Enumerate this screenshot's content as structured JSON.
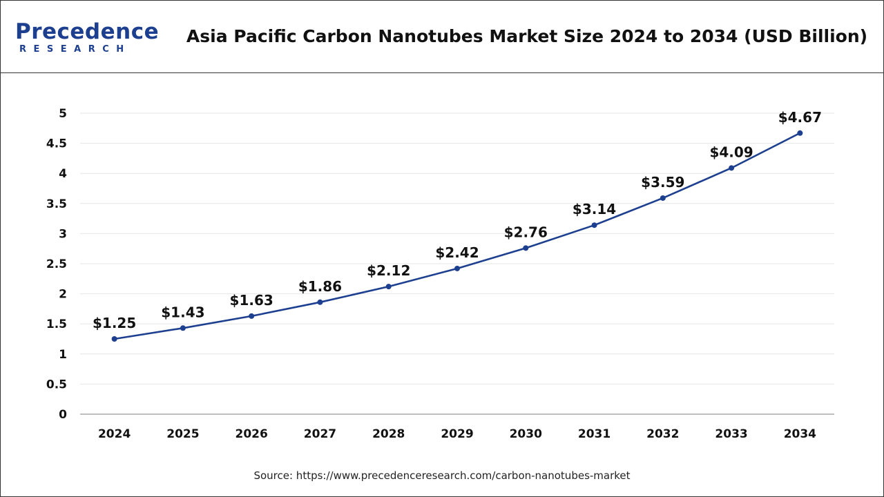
{
  "header": {
    "brand_name": "Precedence",
    "brand_sub": "RESEARCH",
    "title": "Asia Pacific Carbon Nanotubes Market Size 2024 to 2034 (USD Billion)"
  },
  "footer": {
    "source": "Source: https://www.precedenceresearch.com/carbon-nanotubes-market"
  },
  "colors": {
    "line": "#1d3f8f",
    "brand": "#1d3f8f",
    "grid": "#e6e6e6",
    "axis": "#999999"
  },
  "chart_data": {
    "type": "line",
    "title": "Asia Pacific Carbon Nanotubes Market Size 2024 to 2034 (USD Billion)",
    "xlabel": "",
    "ylabel": "",
    "categories": [
      "2024",
      "2025",
      "2026",
      "2027",
      "2028",
      "2029",
      "2030",
      "2031",
      "2032",
      "2033",
      "2034"
    ],
    "series": [
      {
        "values": [
          1.25,
          1.43,
          1.63,
          1.86,
          2.12,
          2.42,
          2.76,
          3.14,
          3.59,
          4.09,
          4.67
        ],
        "labels": [
          "$1.25",
          "$1.43",
          "$1.63",
          "$1.86",
          "$2.12",
          "$2.42",
          "$2.76",
          "$3.14",
          "$3.59",
          "$4.09",
          "$4.67"
        ]
      }
    ],
    "ylim": [
      0,
      5
    ],
    "yticks": [
      "0",
      "0.5",
      "1",
      "1.5",
      "2",
      "2.5",
      "3",
      "3.5",
      "4",
      "4.5",
      "5"
    ],
    "ytick_values": [
      0,
      0.5,
      1,
      1.5,
      2,
      2.5,
      3,
      3.5,
      4,
      4.5,
      5
    ],
    "grid": true,
    "legend": "none"
  }
}
